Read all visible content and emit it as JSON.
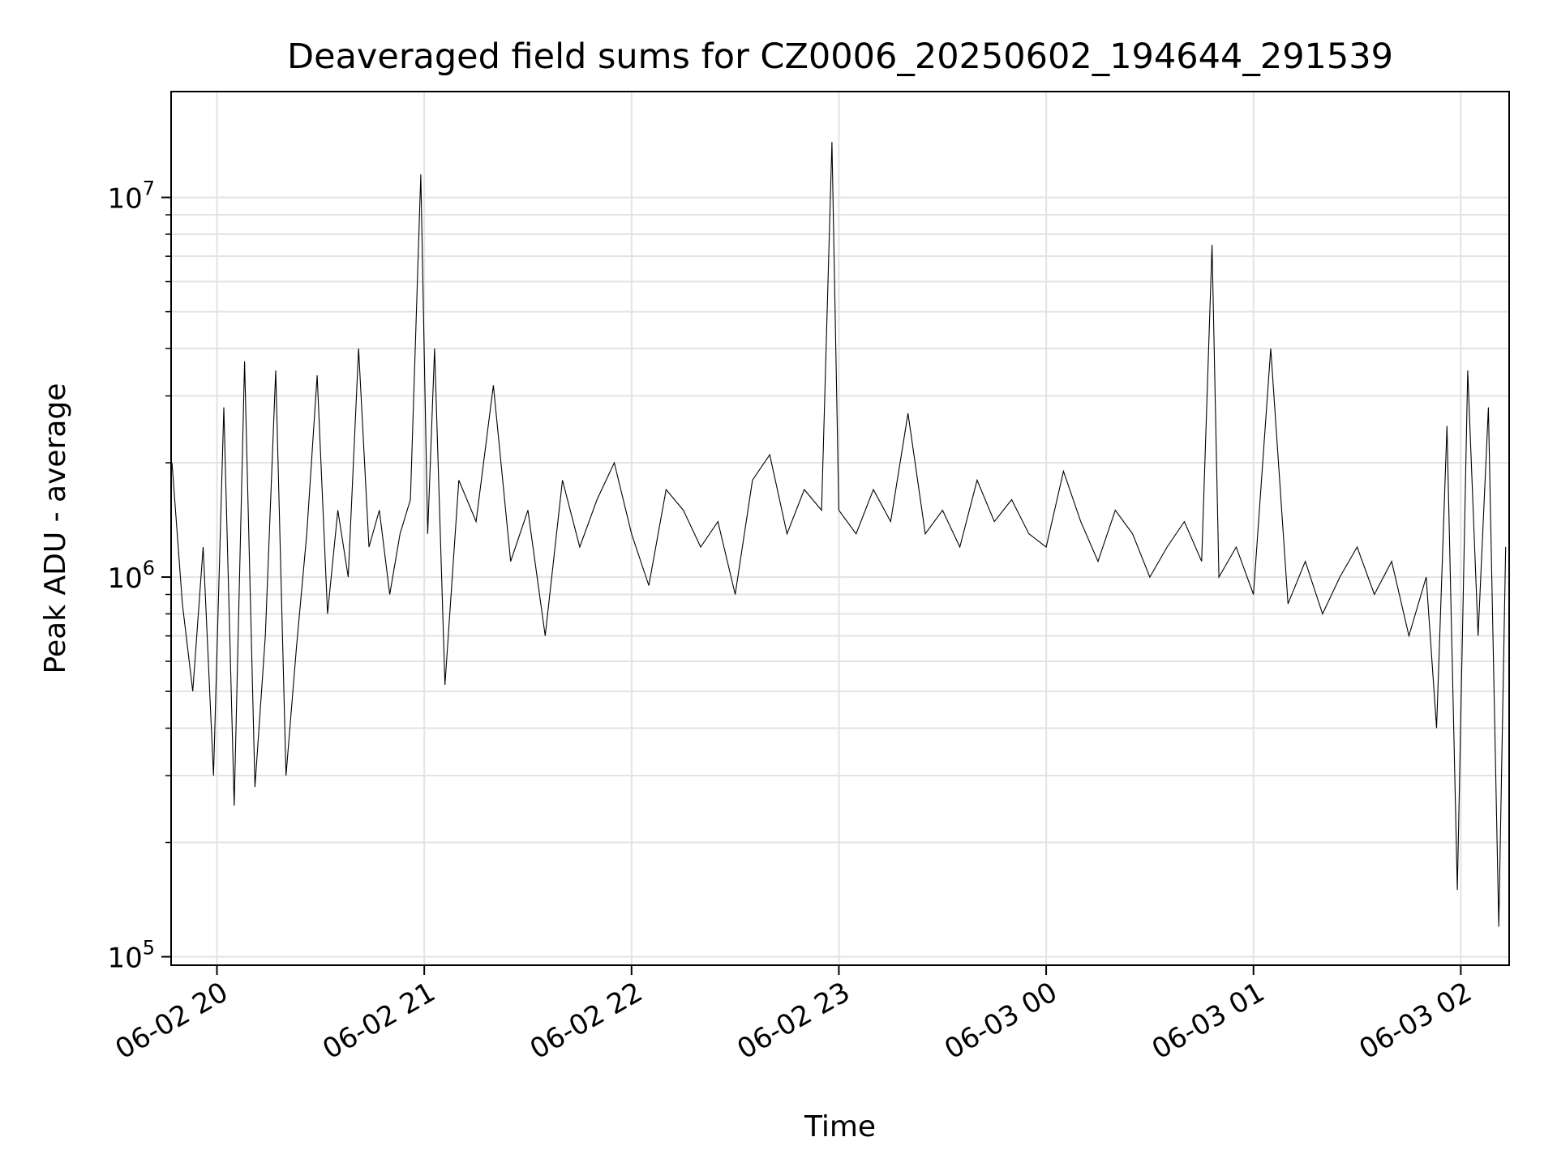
{
  "chart_data": {
    "type": "line",
    "title": "Deaveraged field sums for CZ0006_20250602_194644_291539",
    "xlabel": "Time",
    "ylabel": "Peak ADU - average",
    "y_scale": "log",
    "ylim": [
      95000,
      19000000
    ],
    "xlim": [
      "2025-06-02 19:46:44",
      "2025-06-03 02:14:00"
    ],
    "grid": true,
    "x_ticks": [
      {
        "value": "2025-06-02 20:00",
        "label": "06-02 20"
      },
      {
        "value": "2025-06-02 21:00",
        "label": "06-02 21"
      },
      {
        "value": "2025-06-02 22:00",
        "label": "06-02 22"
      },
      {
        "value": "2025-06-02 23:00",
        "label": "06-02 23"
      },
      {
        "value": "2025-06-03 00:00",
        "label": "06-03 00"
      },
      {
        "value": "2025-06-03 01:00",
        "label": "06-03 01"
      },
      {
        "value": "2025-06-03 02:00",
        "label": "06-03 02"
      }
    ],
    "y_ticks": [
      {
        "value": 100000,
        "base": "10",
        "exp": "5"
      },
      {
        "value": 1000000,
        "base": "10",
        "exp": "6"
      },
      {
        "value": 10000000,
        "base": "10",
        "exp": "7"
      }
    ],
    "line_color": "#000000",
    "series": [
      {
        "x": [
          "2025-06-02 19:47",
          "2025-06-02 19:50",
          "2025-06-02 19:53",
          "2025-06-02 19:56",
          "2025-06-02 19:59",
          "2025-06-02 20:02",
          "2025-06-02 20:05",
          "2025-06-02 20:08",
          "2025-06-02 20:11",
          "2025-06-02 20:14",
          "2025-06-02 20:17",
          "2025-06-02 20:20",
          "2025-06-02 20:23",
          "2025-06-02 20:26",
          "2025-06-02 20:29",
          "2025-06-02 20:32",
          "2025-06-02 20:35",
          "2025-06-02 20:38",
          "2025-06-02 20:41",
          "2025-06-02 20:44",
          "2025-06-02 20:47",
          "2025-06-02 20:50",
          "2025-06-02 20:53",
          "2025-06-02 20:56",
          "2025-06-02 20:59",
          "2025-06-02 21:01",
          "2025-06-02 21:03",
          "2025-06-02 21:06",
          "2025-06-02 21:10",
          "2025-06-02 21:15",
          "2025-06-02 21:20",
          "2025-06-02 21:25",
          "2025-06-02 21:30",
          "2025-06-02 21:35",
          "2025-06-02 21:40",
          "2025-06-02 21:45",
          "2025-06-02 21:50",
          "2025-06-02 21:55",
          "2025-06-02 22:00",
          "2025-06-02 22:05",
          "2025-06-02 22:10",
          "2025-06-02 22:15",
          "2025-06-02 22:20",
          "2025-06-02 22:25",
          "2025-06-02 22:30",
          "2025-06-02 22:35",
          "2025-06-02 22:40",
          "2025-06-02 22:45",
          "2025-06-02 22:50",
          "2025-06-02 22:55",
          "2025-06-02 22:58",
          "2025-06-02 23:00",
          "2025-06-02 23:05",
          "2025-06-02 23:10",
          "2025-06-02 23:15",
          "2025-06-02 23:20",
          "2025-06-02 23:25",
          "2025-06-02 23:30",
          "2025-06-02 23:35",
          "2025-06-02 23:40",
          "2025-06-02 23:45",
          "2025-06-02 23:50",
          "2025-06-02 23:55",
          "2025-06-03 00:00",
          "2025-06-03 00:05",
          "2025-06-03 00:10",
          "2025-06-03 00:15",
          "2025-06-03 00:20",
          "2025-06-03 00:25",
          "2025-06-03 00:30",
          "2025-06-03 00:35",
          "2025-06-03 00:40",
          "2025-06-03 00:45",
          "2025-06-03 00:48",
          "2025-06-03 00:50",
          "2025-06-03 00:55",
          "2025-06-03 01:00",
          "2025-06-03 01:05",
          "2025-06-03 01:10",
          "2025-06-03 01:15",
          "2025-06-03 01:20",
          "2025-06-03 01:25",
          "2025-06-03 01:30",
          "2025-06-03 01:35",
          "2025-06-03 01:40",
          "2025-06-03 01:45",
          "2025-06-03 01:50",
          "2025-06-03 01:53",
          "2025-06-03 01:56",
          "2025-06-03 01:59",
          "2025-06-03 02:02",
          "2025-06-03 02:05",
          "2025-06-03 02:08",
          "2025-06-03 02:11",
          "2025-06-03 02:13"
        ],
        "y": [
          2000000,
          850000,
          500000,
          1200000,
          300000,
          2800000,
          250000,
          3700000,
          280000,
          700000,
          3500000,
          300000,
          650000,
          1300000,
          3400000,
          800000,
          1500000,
          1000000,
          4000000,
          1200000,
          1500000,
          900000,
          1300000,
          1600000,
          11500000,
          1300000,
          4000000,
          520000,
          1800000,
          1400000,
          3200000,
          1100000,
          1500000,
          700000,
          1800000,
          1200000,
          1600000,
          2000000,
          1300000,
          950000,
          1700000,
          1500000,
          1200000,
          1400000,
          900000,
          1800000,
          2100000,
          1300000,
          1700000,
          1500000,
          14000000,
          1500000,
          1300000,
          1700000,
          1400000,
          2700000,
          1300000,
          1500000,
          1200000,
          1800000,
          1400000,
          1600000,
          1300000,
          1200000,
          1900000,
          1400000,
          1100000,
          1500000,
          1300000,
          1000000,
          1200000,
          1400000,
          1100000,
          7500000,
          1000000,
          1200000,
          900000,
          4000000,
          850000,
          1100000,
          800000,
          1000000,
          1200000,
          900000,
          1100000,
          700000,
          1000000,
          400000,
          2500000,
          150000,
          3500000,
          700000,
          2800000,
          120000,
          1200000
        ]
      }
    ]
  }
}
